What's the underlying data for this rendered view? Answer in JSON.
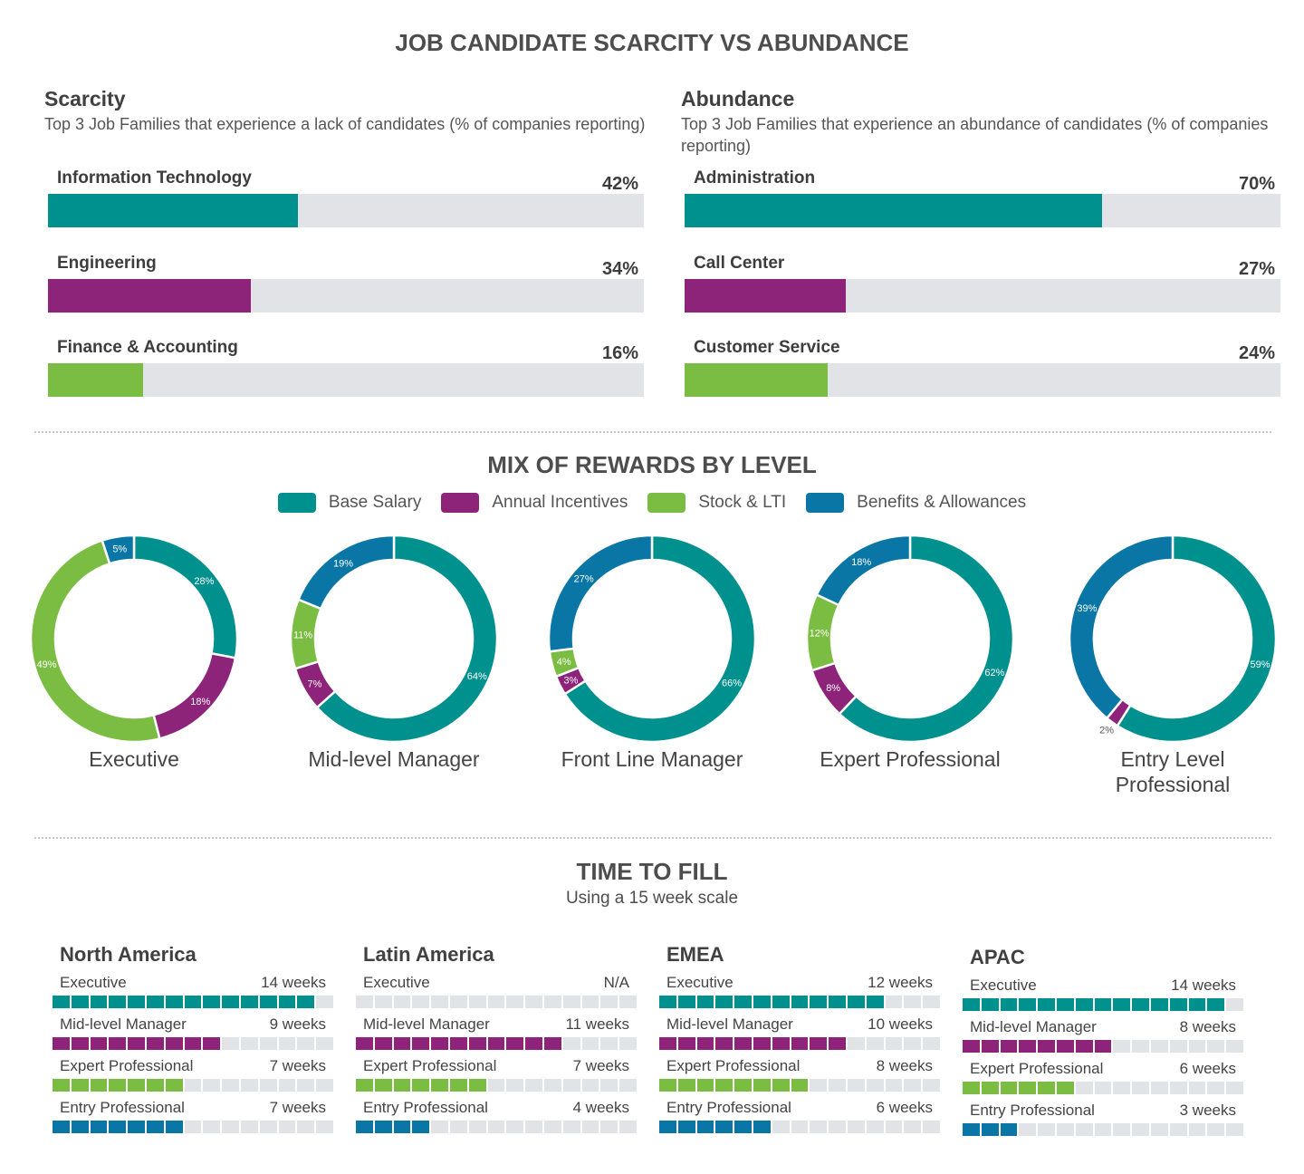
{
  "title": "JOB CANDIDATE SCARCITY VS ABUNDANCE",
  "colors": {
    "teal": "#00908e",
    "purple": "#8e2479",
    "green": "#7bbd43",
    "blue": "#0a76a6",
    "track": "#e1e3e6"
  },
  "scarcity": {
    "heading": "Scarcity",
    "subtitle": "Top 3 Job Families that experience a lack of candidates (% of companies reporting)",
    "bars": [
      {
        "label": "Information Technology",
        "value": 42,
        "value_text": "42%",
        "color": "#00908e"
      },
      {
        "label": "Engineering",
        "value": 34,
        "value_text": "34%",
        "color": "#8e2479"
      },
      {
        "label": "Finance & Accounting",
        "value": 16,
        "value_text": "16%",
        "color": "#7bbd43"
      }
    ]
  },
  "abundance": {
    "heading": "Abundance",
    "subtitle": "Top 3 Job Families that experience an abundance of candidates (% of companies reporting)",
    "bars": [
      {
        "label": "Administration",
        "value": 70,
        "value_text": "70%",
        "color": "#00908e"
      },
      {
        "label": "Call Center",
        "value": 27,
        "value_text": "27%",
        "color": "#8e2479"
      },
      {
        "label": "Customer Service",
        "value": 24,
        "value_text": "24%",
        "color": "#7bbd43"
      }
    ]
  },
  "rewards": {
    "title": "MIX OF REWARDS BY LEVEL",
    "legend": [
      {
        "name": "Base Salary",
        "color": "#00908e"
      },
      {
        "name": "Annual Incentives",
        "color": "#8e2479"
      },
      {
        "name": "Stock & LTI",
        "color": "#7bbd43"
      },
      {
        "name": "Benefits & Allowances",
        "color": "#0a76a6"
      }
    ]
  },
  "time_to_fill": {
    "title": "TIME TO FILL",
    "subtitle": "Using a 15 week scale",
    "scale_max": 15
  },
  "chart_data": [
    {
      "type": "bar",
      "title": "Scarcity",
      "categories": [
        "Information Technology",
        "Engineering",
        "Finance & Accounting"
      ],
      "values": [
        42,
        34,
        16
      ],
      "unit": "%",
      "ylim": [
        0,
        100
      ]
    },
    {
      "type": "bar",
      "title": "Abundance",
      "categories": [
        "Administration",
        "Call Center",
        "Customer Service"
      ],
      "values": [
        70,
        27,
        24
      ],
      "unit": "%",
      "ylim": [
        0,
        100
      ]
    },
    {
      "type": "pie",
      "title": "MIX OF REWARDS BY LEVEL",
      "categories": [
        "Base Salary",
        "Annual Incentives",
        "Stock & LTI",
        "Benefits & Allowances"
      ],
      "donuts": [
        {
          "name": "Executive",
          "values": [
            28,
            18,
            49,
            5
          ]
        },
        {
          "name": "Mid-level Manager",
          "values": [
            64,
            7,
            11,
            19
          ]
        },
        {
          "name": "Front Line Manager",
          "values": [
            66,
            3,
            4,
            27
          ]
        },
        {
          "name": "Expert Professional",
          "values": [
            62,
            8,
            12,
            18
          ]
        },
        {
          "name": "Entry Level Professional",
          "values": [
            59,
            2,
            0,
            39
          ]
        }
      ]
    },
    {
      "type": "bar",
      "title": "TIME TO FILL",
      "subtitle": "Using a 15 week scale",
      "categories": [
        "Executive",
        "Mid-level Manager",
        "Expert Professional",
        "Entry Professional"
      ],
      "ylim": [
        0,
        15
      ],
      "regions": [
        {
          "name": "North America",
          "rows": [
            {
              "label": "Executive",
              "weeks": 14,
              "text": "14 weeks"
            },
            {
              "label": "Mid-level Manager",
              "weeks": 9,
              "text": "9 weeks"
            },
            {
              "label": "Expert Professional",
              "weeks": 7,
              "text": "7 weeks"
            },
            {
              "label": "Entry Professional",
              "weeks": 7,
              "text": "7 weeks"
            }
          ]
        },
        {
          "name": "Latin America",
          "rows": [
            {
              "label": "Executive",
              "weeks": 0,
              "text": "N/A"
            },
            {
              "label": "Mid-level Manager",
              "weeks": 11,
              "text": "11 weeks"
            },
            {
              "label": "Expert Professional",
              "weeks": 7,
              "text": "7 weeks"
            },
            {
              "label": "Entry Professional",
              "weeks": 4,
              "text": "4 weeks"
            }
          ]
        },
        {
          "name": "EMEA",
          "rows": [
            {
              "label": "Executive",
              "weeks": 12,
              "text": "12 weeks"
            },
            {
              "label": "Mid-level Manager",
              "weeks": 10,
              "text": "10 weeks"
            },
            {
              "label": "Expert Professional",
              "weeks": 8,
              "text": "8 weeks"
            },
            {
              "label": "Entry Professional",
              "weeks": 6,
              "text": "6 weeks"
            }
          ]
        },
        {
          "name": "APAC",
          "rows": [
            {
              "label": "Executive",
              "weeks": 14,
              "text": "14 weeks"
            },
            {
              "label": "Mid-level Manager",
              "weeks": 8,
              "text": "8 weeks"
            },
            {
              "label": "Expert Professional",
              "weeks": 6,
              "text": "6 weeks"
            },
            {
              "label": "Entry Professional",
              "weeks": 3,
              "text": "3 weeks"
            }
          ]
        }
      ]
    }
  ]
}
